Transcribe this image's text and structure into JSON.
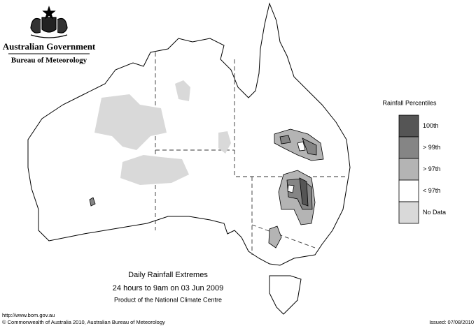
{
  "header": {
    "government": "Australian Government",
    "bureau": "Bureau of Meteorology"
  },
  "legend": {
    "title": "Rainfall Percentiles",
    "items": [
      {
        "label": "100th",
        "color": "#555555"
      },
      {
        "label": "> 99th",
        "color": "#858585"
      },
      {
        "label": "> 97th",
        "color": "#b4b4b4"
      },
      {
        "label": "< 97th",
        "color": "#ffffff"
      },
      {
        "label": "No Data",
        "color": "#d9d9d9"
      }
    ]
  },
  "caption": {
    "title": "Daily Rainfall Extremes",
    "subtitle": "24 hours to 9am on 03 Jun 2009",
    "source": "Product of the National Climate Centre"
  },
  "footer": {
    "url": "http://www.bom.gov.au",
    "copyright": "© Commonwealth of Australia 2010, Australian Bureau of Meteorology",
    "issued": "Issued: 07/08/2010"
  }
}
